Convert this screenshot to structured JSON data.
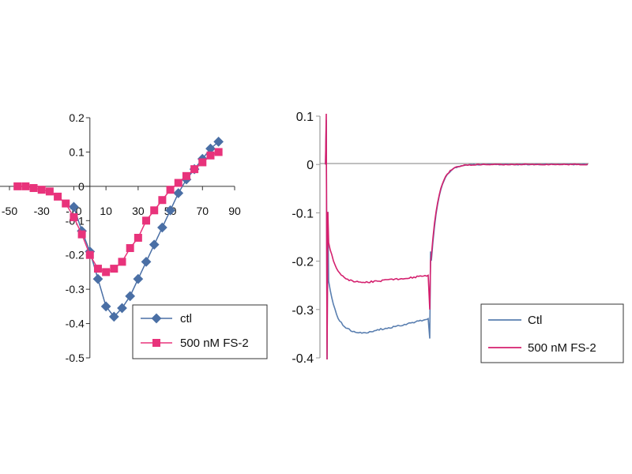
{
  "chart_data": [
    {
      "type": "line",
      "xlim": [
        -50,
        90
      ],
      "ylim": [
        -0.5,
        0.2
      ],
      "x_ticks": [
        "-50",
        "-30",
        "-10",
        "10",
        "30",
        "50",
        "70",
        "90"
      ],
      "y_ticks": [
        "0.2",
        "0.1",
        "0",
        "-0.1",
        "-0.2",
        "-0.3",
        "-0.4",
        "-0.5"
      ],
      "grid": false,
      "legend_position": "bottom-right",
      "series": [
        {
          "name": "ctl",
          "color": "#4a6fa5",
          "marker": "diamond",
          "x": [
            -10,
            -5,
            0,
            5,
            10,
            15,
            20,
            25,
            30,
            35,
            40,
            45,
            50,
            55,
            60,
            65,
            70,
            75,
            80
          ],
          "y": [
            -0.06,
            -0.13,
            -0.19,
            -0.27,
            -0.35,
            -0.38,
            -0.355,
            -0.32,
            -0.27,
            -0.22,
            -0.17,
            -0.12,
            -0.07,
            -0.02,
            0.02,
            0.05,
            0.08,
            0.11,
            0.13
          ]
        },
        {
          "name": "500 nM FS-2",
          "color": "#e8337b",
          "marker": "square",
          "x": [
            -45,
            -40,
            -35,
            -30,
            -25,
            -20,
            -15,
            -10,
            -5,
            0,
            5,
            10,
            15,
            20,
            25,
            30,
            35,
            40,
            45,
            50,
            55,
            60,
            65,
            70,
            75,
            80
          ],
          "y": [
            0.0,
            0.0,
            -0.005,
            -0.01,
            -0.015,
            -0.03,
            -0.05,
            -0.09,
            -0.14,
            -0.2,
            -0.24,
            -0.25,
            -0.24,
            -0.22,
            -0.18,
            -0.15,
            -0.1,
            -0.07,
            -0.04,
            -0.01,
            0.01,
            0.03,
            0.05,
            0.07,
            0.09,
            0.1
          ]
        }
      ]
    },
    {
      "type": "line",
      "ylim": [
        -0.4,
        0.1
      ],
      "y_ticks": [
        "0.1",
        "0",
        "-0.1",
        "-0.2",
        "-0.3",
        "-0.4"
      ],
      "grid": false,
      "legend_position": "bottom-right",
      "series": [
        {
          "name": "Ctl",
          "color": "#5a7fb0",
          "steady_level": -0.35,
          "end_level": -0.32
        },
        {
          "name": "500 nM FS-2",
          "color": "#d4206e",
          "steady_level": -0.245,
          "end_level": -0.23
        }
      ]
    }
  ]
}
